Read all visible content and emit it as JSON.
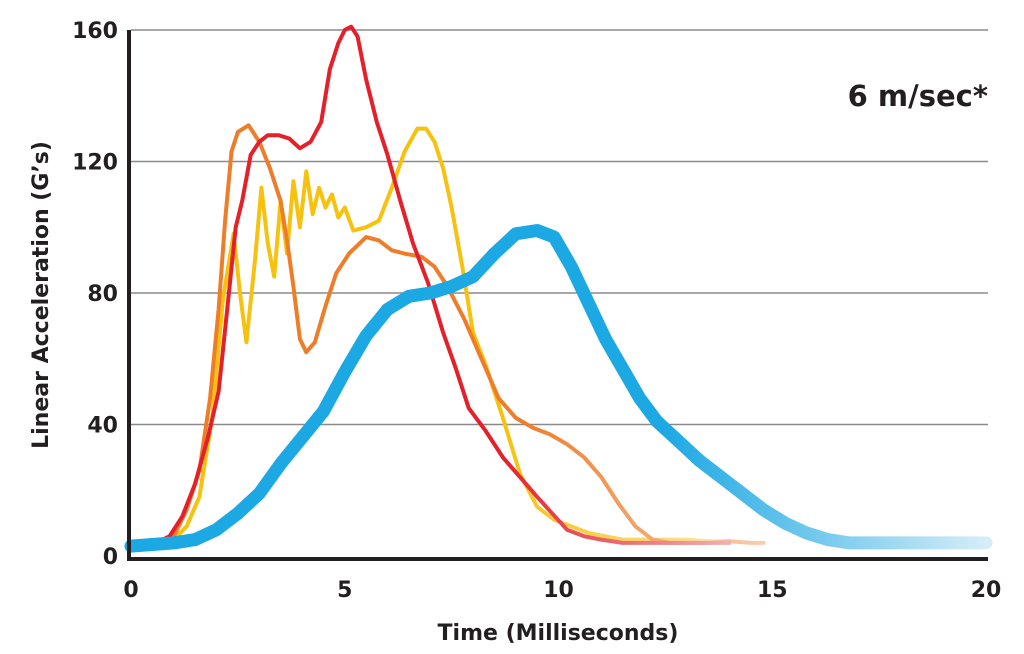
{
  "chart_data": {
    "type": "line",
    "title": "",
    "xlabel": "Time (Milliseconds)",
    "ylabel": "Linear Acceleration (G’s)",
    "annotation": "6 m/sec*",
    "xlim": [
      0,
      20
    ],
    "ylim": [
      0,
      160
    ],
    "xticks": [
      0,
      5,
      10,
      15,
      20
    ],
    "xtick_labels": [
      "0",
      "5",
      "10",
      "15",
      "20"
    ],
    "yticks": [
      0,
      40,
      80,
      120,
      160
    ],
    "ytick_labels": [
      "0",
      "40",
      "80",
      "120",
      "160"
    ],
    "grid": true,
    "legend": "none",
    "series": [
      {
        "color": "#f6c20f",
        "fade_color": "#fbe6a8",
        "width": 4,
        "points": [
          [
            0,
            3
          ],
          [
            0.5,
            3.5
          ],
          [
            1,
            5
          ],
          [
            1.3,
            9
          ],
          [
            1.6,
            18
          ],
          [
            1.9,
            42
          ],
          [
            2.15,
            78
          ],
          [
            2.4,
            98
          ],
          [
            2.55,
            80
          ],
          [
            2.7,
            65
          ],
          [
            2.9,
            90
          ],
          [
            3.05,
            112
          ],
          [
            3.2,
            95
          ],
          [
            3.35,
            85
          ],
          [
            3.5,
            108
          ],
          [
            3.65,
            92
          ],
          [
            3.8,
            114
          ],
          [
            3.95,
            100
          ],
          [
            4.1,
            117
          ],
          [
            4.25,
            104
          ],
          [
            4.4,
            112
          ],
          [
            4.55,
            106
          ],
          [
            4.7,
            110
          ],
          [
            4.85,
            103
          ],
          [
            5,
            106
          ],
          [
            5.2,
            99
          ],
          [
            5.5,
            100
          ],
          [
            5.8,
            102
          ],
          [
            6.1,
            112
          ],
          [
            6.4,
            123
          ],
          [
            6.7,
            130
          ],
          [
            6.9,
            130
          ],
          [
            7.1,
            126
          ],
          [
            7.3,
            118
          ],
          [
            7.5,
            106
          ],
          [
            7.75,
            88
          ],
          [
            8,
            68
          ],
          [
            8.3,
            58
          ],
          [
            8.7,
            42
          ],
          [
            9.1,
            25
          ],
          [
            9.5,
            15
          ],
          [
            9.9,
            11
          ],
          [
            10.3,
            9
          ],
          [
            10.7,
            7
          ],
          [
            11.1,
            6
          ],
          [
            11.5,
            5
          ],
          [
            12,
            5
          ],
          [
            12.5,
            5
          ],
          [
            13,
            5
          ],
          [
            13.5,
            4.5
          ],
          [
            14,
            4.5
          ]
        ]
      },
      {
        "color": "#ee7d2a",
        "fade_color": "#f8cdb0",
        "width": 4,
        "points": [
          [
            0,
            3
          ],
          [
            0.5,
            3.5
          ],
          [
            1,
            6
          ],
          [
            1.3,
            14
          ],
          [
            1.6,
            26
          ],
          [
            1.85,
            48
          ],
          [
            2.05,
            75
          ],
          [
            2.2,
            102
          ],
          [
            2.35,
            123
          ],
          [
            2.5,
            129
          ],
          [
            2.75,
            131
          ],
          [
            3.0,
            126
          ],
          [
            3.25,
            118
          ],
          [
            3.5,
            108
          ],
          [
            3.65,
            96
          ],
          [
            3.8,
            82
          ],
          [
            3.95,
            66
          ],
          [
            4.1,
            62
          ],
          [
            4.3,
            65
          ],
          [
            4.55,
            76
          ],
          [
            4.8,
            86
          ],
          [
            5.1,
            92
          ],
          [
            5.5,
            97
          ],
          [
            5.8,
            96
          ],
          [
            6.1,
            93
          ],
          [
            6.4,
            92
          ],
          [
            6.8,
            91
          ],
          [
            7.1,
            88
          ],
          [
            7.4,
            82
          ],
          [
            7.8,
            72
          ],
          [
            8.2,
            60
          ],
          [
            8.6,
            48
          ],
          [
            9.0,
            42
          ],
          [
            9.4,
            39
          ],
          [
            9.8,
            37
          ],
          [
            10.2,
            34
          ],
          [
            10.6,
            30
          ],
          [
            11.0,
            24
          ],
          [
            11.4,
            16
          ],
          [
            11.8,
            9
          ],
          [
            12.2,
            5
          ],
          [
            12.6,
            4
          ],
          [
            13.0,
            4
          ],
          [
            13.5,
            4
          ],
          [
            14.0,
            4.5
          ],
          [
            14.5,
            4
          ],
          [
            14.8,
            4
          ]
        ]
      },
      {
        "color": "#e4202a",
        "fade_color": "#f2b0b4",
        "width": 4,
        "points": [
          [
            0,
            3
          ],
          [
            0.5,
            3.5
          ],
          [
            0.9,
            6
          ],
          [
            1.2,
            12
          ],
          [
            1.5,
            22
          ],
          [
            1.8,
            36
          ],
          [
            2.05,
            50
          ],
          [
            2.25,
            75
          ],
          [
            2.45,
            100
          ],
          [
            2.6,
            108
          ],
          [
            2.8,
            122
          ],
          [
            3.0,
            126
          ],
          [
            3.2,
            128
          ],
          [
            3.45,
            128
          ],
          [
            3.7,
            127
          ],
          [
            3.95,
            124
          ],
          [
            4.2,
            126
          ],
          [
            4.45,
            132
          ],
          [
            4.65,
            148
          ],
          [
            4.85,
            156
          ],
          [
            5.0,
            160
          ],
          [
            5.15,
            161
          ],
          [
            5.3,
            158
          ],
          [
            5.5,
            145
          ],
          [
            5.75,
            132
          ],
          [
            6.0,
            122
          ],
          [
            6.3,
            108
          ],
          [
            6.6,
            95
          ],
          [
            6.95,
            83
          ],
          [
            7.3,
            68
          ],
          [
            7.6,
            57
          ],
          [
            7.9,
            45
          ],
          [
            8.3,
            38
          ],
          [
            8.7,
            30
          ],
          [
            9.1,
            24
          ],
          [
            9.5,
            18
          ],
          [
            9.85,
            13
          ],
          [
            10.2,
            8
          ],
          [
            10.6,
            6
          ],
          [
            11.0,
            5
          ],
          [
            11.5,
            4
          ],
          [
            12.0,
            4
          ],
          [
            12.5,
            4
          ],
          [
            13.0,
            4
          ],
          [
            13.5,
            4
          ],
          [
            14.0,
            4
          ]
        ]
      },
      {
        "color": "#1ba8e3",
        "fade_color": "#d5edf8",
        "width": 13,
        "points": [
          [
            0,
            3
          ],
          [
            0.5,
            3.5
          ],
          [
            1,
            4
          ],
          [
            1.5,
            5
          ],
          [
            2,
            8
          ],
          [
            2.5,
            13
          ],
          [
            3,
            19
          ],
          [
            3.5,
            28
          ],
          [
            4,
            36
          ],
          [
            4.5,
            44
          ],
          [
            5,
            56
          ],
          [
            5.5,
            67
          ],
          [
            6,
            75
          ],
          [
            6.5,
            79
          ],
          [
            7,
            80
          ],
          [
            7.5,
            82
          ],
          [
            8,
            85
          ],
          [
            8.5,
            92
          ],
          [
            9,
            98
          ],
          [
            9.5,
            99
          ],
          [
            9.9,
            97
          ],
          [
            10.3,
            88
          ],
          [
            10.7,
            77
          ],
          [
            11.1,
            66
          ],
          [
            11.5,
            57
          ],
          [
            11.9,
            48
          ],
          [
            12.3,
            41
          ],
          [
            12.8,
            35
          ],
          [
            13.3,
            29
          ],
          [
            13.8,
            24
          ],
          [
            14.3,
            19
          ],
          [
            14.8,
            14
          ],
          [
            15.3,
            10
          ],
          [
            15.8,
            7
          ],
          [
            16.3,
            5
          ],
          [
            16.8,
            4
          ],
          [
            17.5,
            4
          ],
          [
            18,
            4
          ],
          [
            19,
            4
          ],
          [
            20,
            4
          ]
        ]
      }
    ]
  }
}
